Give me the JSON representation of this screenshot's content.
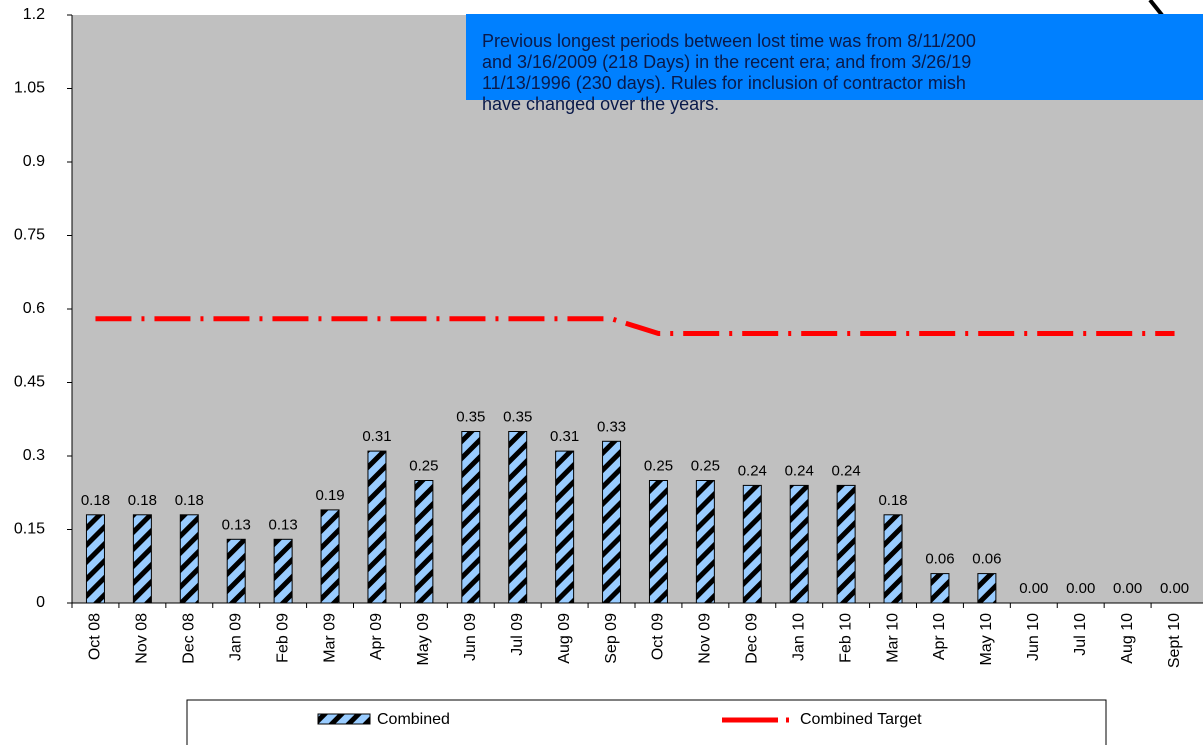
{
  "chart_data": {
    "type": "bar",
    "categories": [
      "Oct 08",
      "Nov 08",
      "Dec 08",
      "Jan 09",
      "Feb 09",
      "Mar 09",
      "Apr 09",
      "May 09",
      "Jun 09",
      "Jul 09",
      "Aug 09",
      "Sep 09",
      "Oct 09",
      "Nov 09",
      "Dec 09",
      "Jan 10",
      "Feb 10",
      "Mar 10",
      "Apr 10",
      "May 10",
      "Jun 10",
      "Jul 10",
      "Aug 10",
      "Sept 10"
    ],
    "series": [
      {
        "name": "Combined",
        "type": "bar",
        "color": "#99ccff",
        "values": [
          0.18,
          0.18,
          0.18,
          0.13,
          0.13,
          0.19,
          0.31,
          0.25,
          0.35,
          0.35,
          0.31,
          0.33,
          0.25,
          0.25,
          0.24,
          0.24,
          0.24,
          0.18,
          0.06,
          0.06,
          0,
          0,
          0,
          0
        ],
        "value_labels": [
          "0.18",
          "0.18",
          "0.18",
          "0.13",
          "0.13",
          "0.19",
          "0.31",
          "0.25",
          "0.35",
          "0.35",
          "0.31",
          "0.33",
          "0.25",
          "0.25",
          "0.24",
          "0.24",
          "0.24",
          "0.18",
          "0.06",
          "0.06",
          "0.00",
          "0.00",
          "0.00",
          "0.00"
        ]
      },
      {
        "name": "Combined Target",
        "type": "line",
        "color": "#ff0000",
        "values": [
          0.58,
          0.58,
          0.58,
          0.58,
          0.58,
          0.58,
          0.58,
          0.58,
          0.58,
          0.58,
          0.58,
          0.58,
          0.55,
          0.55,
          0.55,
          0.55,
          0.55,
          0.55,
          0.55,
          0.55,
          0.55,
          0.55,
          0.55,
          0.55
        ]
      }
    ],
    "ylim": [
      0,
      1.2
    ],
    "yticks": [
      0,
      0.15,
      0.3,
      0.45,
      0.6,
      0.75,
      0.9,
      1.05,
      1.2
    ],
    "annotation": [
      "Previous longest periods between lost time was from 8/11/200",
      "and 3/16/2009 (218 Days) in the recent era; and from 3/26/19",
      "11/13/1996  (230 days). Rules for inclusion of contractor mish",
      "have changed over the years."
    ],
    "plot_background": "#c0c0c0",
    "annotation_color": "#0080ff"
  }
}
